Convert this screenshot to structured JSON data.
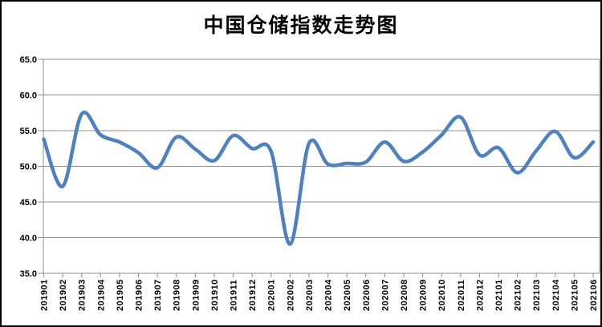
{
  "title": "中国仓储指数走势图",
  "chart_data": {
    "type": "line",
    "title": "中国仓储指数走势图",
    "xlabel": "",
    "ylabel": "",
    "legend": "none",
    "grid": true,
    "ylim": [
      35.0,
      65.0
    ],
    "ytick_step": 5.0,
    "y_tick_labels": [
      "65.0",
      "60.0",
      "55.0",
      "50.0",
      "45.0",
      "40.0",
      "35.0"
    ],
    "x_axis_label_rotation": 90,
    "line_color": "#4F81BD",
    "grid_color": "#8c8c8c",
    "categories": [
      "201901",
      "201902",
      "201903",
      "201904",
      "201905",
      "201906",
      "201907",
      "201908",
      "201909",
      "201910",
      "201911",
      "201912",
      "202001",
      "202002",
      "202003",
      "202004",
      "202005",
      "202006",
      "202007",
      "202008",
      "202009",
      "202010",
      "202011",
      "202012",
      "202101",
      "202102",
      "202103",
      "202104",
      "202105",
      "202106"
    ],
    "values": [
      53.8,
      47.2,
      57.3,
      54.4,
      53.4,
      51.9,
      49.8,
      54.1,
      52.4,
      50.8,
      54.3,
      52.5,
      52.1,
      39.1,
      53.2,
      50.3,
      50.4,
      50.6,
      53.4,
      50.7,
      52.0,
      54.4,
      56.9,
      51.6,
      52.6,
      49.1,
      52.2,
      54.9,
      51.2,
      53.4
    ]
  },
  "colors": {
    "background": "#FFFFFF",
    "frame": "#000000",
    "text": "#000000",
    "line": "#4F81BD",
    "grid": "#8c8c8c"
  }
}
